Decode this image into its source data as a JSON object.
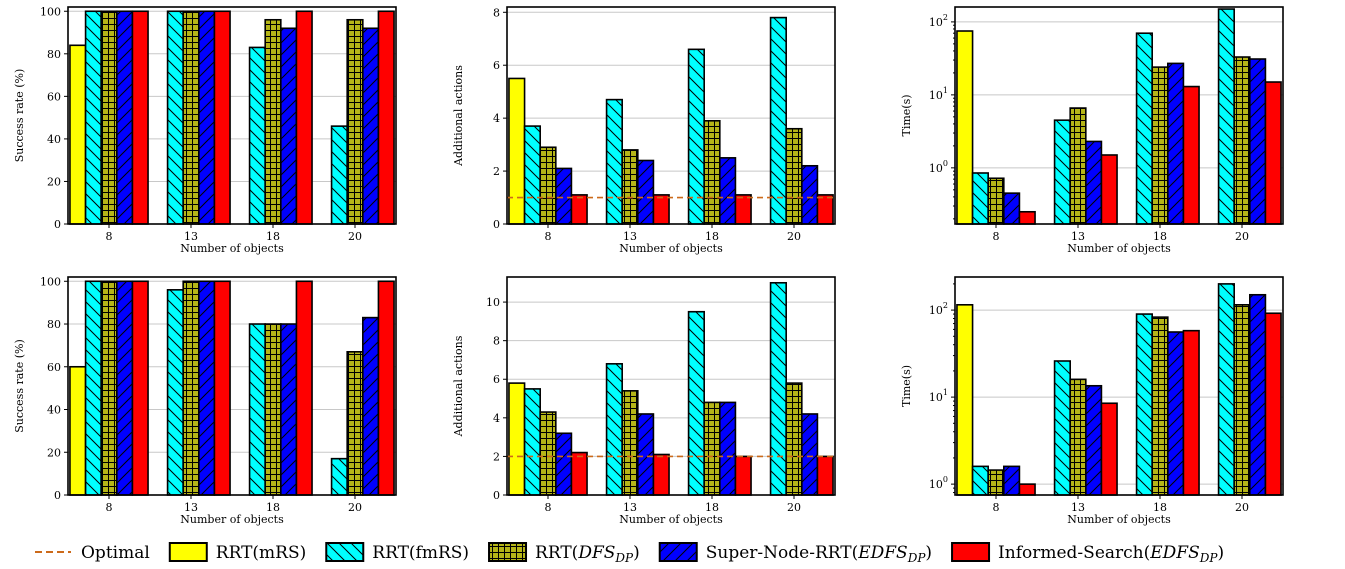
{
  "legend": {
    "items": [
      {
        "key": "optimal",
        "label": "Optimal",
        "kind": "line",
        "color": "#cc6a1a"
      },
      {
        "key": "mrs",
        "label": "RRT(mRS)",
        "kind": "bar",
        "color": "#ffff00",
        "hatch": "none"
      },
      {
        "key": "fmrs",
        "label": "RRT(fmRS)",
        "kind": "bar",
        "color": "#00ffff",
        "hatch": "backslash"
      },
      {
        "key": "dfs",
        "label_main": "RRT(",
        "label_sym": "DFS",
        "label_sub": "DP",
        "label_end": ")",
        "kind": "bar",
        "color": "#b5b518",
        "hatch": "grid"
      },
      {
        "key": "sn",
        "label_main": "Super-Node-RRT(",
        "label_sym": "EDFS",
        "label_sub": "DP",
        "label_end": ")",
        "kind": "bar",
        "color": "#0000ff",
        "hatch": "slash"
      },
      {
        "key": "inf",
        "label_main": "Informed-Search(",
        "label_sym": "EDFS",
        "label_sub": "DP",
        "label_end": ")",
        "kind": "bar",
        "color": "#ff0000",
        "hatch": "none"
      }
    ]
  },
  "chart_data": [
    {
      "type": "bar",
      "scale": "linear",
      "categories": [
        "8",
        "13",
        "18",
        "20"
      ],
      "xlabel": "Number of objects",
      "ylabel": "Success rate (%)",
      "ylim": [
        0,
        102
      ],
      "yticks": [
        0,
        20,
        40,
        60,
        80,
        100
      ],
      "grid": true,
      "series": [
        {
          "name": "RRT(mRS)",
          "values": [
            84,
            null,
            null,
            null
          ]
        },
        {
          "name": "RRT(fmRS)",
          "values": [
            100,
            100,
            83,
            46
          ]
        },
        {
          "name": "RRT(DFS_DP)",
          "values": [
            100,
            100,
            96,
            96
          ]
        },
        {
          "name": "Super-Node-RRT(EDFS_DP)",
          "values": [
            100,
            100,
            92,
            92
          ]
        },
        {
          "name": "Informed-Search(EDFS_DP)",
          "values": [
            100,
            100,
            100,
            100
          ]
        }
      ]
    },
    {
      "type": "bar",
      "scale": "linear",
      "categories": [
        "8",
        "13",
        "18",
        "20"
      ],
      "xlabel": "Number of objects",
      "ylabel": "Additional actions",
      "ylim": [
        0,
        8.2
      ],
      "yticks": [
        0,
        2,
        4,
        6,
        8
      ],
      "grid": true,
      "optimal": 1,
      "series": [
        {
          "name": "RRT(mRS)",
          "values": [
            5.5,
            null,
            null,
            null
          ]
        },
        {
          "name": "RRT(fmRS)",
          "values": [
            3.7,
            4.7,
            6.6,
            7.8
          ]
        },
        {
          "name": "RRT(DFS_DP)",
          "values": [
            2.9,
            2.8,
            3.9,
            3.6
          ]
        },
        {
          "name": "Super-Node-RRT(EDFS_DP)",
          "values": [
            2.1,
            2.4,
            2.5,
            2.2
          ]
        },
        {
          "name": "Informed-Search(EDFS_DP)",
          "values": [
            1.1,
            1.1,
            1.1,
            1.1
          ]
        }
      ]
    },
    {
      "type": "bar",
      "scale": "log",
      "categories": [
        "8",
        "13",
        "18",
        "20"
      ],
      "xlabel": "Number of objects",
      "ylabel": "Time(s)",
      "ylim": [
        0.17,
        160
      ],
      "yticks": [
        1,
        10,
        100
      ],
      "grid": true,
      "series": [
        {
          "name": "RRT(mRS)",
          "values": [
            75,
            null,
            null,
            null
          ]
        },
        {
          "name": "RRT(fmRS)",
          "values": [
            0.85,
            4.5,
            70,
            150
          ]
        },
        {
          "name": "RRT(DFS_DP)",
          "values": [
            0.72,
            6.6,
            24,
            33
          ]
        },
        {
          "name": "Super-Node-RRT(EDFS_DP)",
          "values": [
            0.45,
            2.3,
            27,
            31
          ]
        },
        {
          "name": "Informed-Search(EDFS_DP)",
          "values": [
            0.25,
            1.5,
            13,
            15
          ]
        }
      ]
    },
    {
      "type": "bar",
      "scale": "linear",
      "categories": [
        "8",
        "13",
        "18",
        "20"
      ],
      "xlabel": "Number of objects",
      "ylabel": "Success rate (%)",
      "ylim": [
        0,
        102
      ],
      "yticks": [
        0,
        20,
        40,
        60,
        80,
        100
      ],
      "grid": true,
      "series": [
        {
          "name": "RRT(mRS)",
          "values": [
            60,
            null,
            null,
            null
          ]
        },
        {
          "name": "RRT(fmRS)",
          "values": [
            100,
            96,
            80,
            17
          ]
        },
        {
          "name": "RRT(DFS_DP)",
          "values": [
            100,
            100,
            80,
            67
          ]
        },
        {
          "name": "Super-Node-RRT(EDFS_DP)",
          "values": [
            100,
            100,
            80,
            83
          ]
        },
        {
          "name": "Informed-Search(EDFS_DP)",
          "values": [
            100,
            100,
            100,
            100
          ]
        }
      ]
    },
    {
      "type": "bar",
      "scale": "linear",
      "categories": [
        "8",
        "13",
        "18",
        "20"
      ],
      "xlabel": "Number of objects",
      "ylabel": "Additional actions",
      "ylim": [
        0,
        11.3
      ],
      "yticks": [
        0,
        2,
        4,
        6,
        8,
        10
      ],
      "grid": true,
      "optimal": 2,
      "series": [
        {
          "name": "RRT(mRS)",
          "values": [
            5.8,
            null,
            null,
            null
          ]
        },
        {
          "name": "RRT(fmRS)",
          "values": [
            5.5,
            6.8,
            9.5,
            11.0
          ]
        },
        {
          "name": "RRT(DFS_DP)",
          "values": [
            4.3,
            5.4,
            4.8,
            5.8
          ]
        },
        {
          "name": "Super-Node-RRT(EDFS_DP)",
          "values": [
            3.2,
            4.2,
            4.8,
            4.2
          ]
        },
        {
          "name": "Informed-Search(EDFS_DP)",
          "values": [
            2.2,
            2.1,
            2.0,
            2.0
          ]
        }
      ]
    },
    {
      "type": "bar",
      "scale": "log",
      "categories": [
        "8",
        "13",
        "18",
        "20"
      ],
      "xlabel": "Number of objects",
      "ylabel": "Time(s)",
      "ylim": [
        0.75,
        240
      ],
      "yticks": [
        1,
        10,
        100
      ],
      "grid": true,
      "series": [
        {
          "name": "RRT(mRS)",
          "values": [
            115,
            null,
            null,
            null
          ]
        },
        {
          "name": "RRT(fmRS)",
          "values": [
            1.6,
            26,
            90,
            200
          ]
        },
        {
          "name": "RRT(DFS_DP)",
          "values": [
            1.45,
            16,
            83,
            115
          ]
        },
        {
          "name": "Super-Node-RRT(EDFS_DP)",
          "values": [
            1.6,
            13.5,
            56,
            150
          ]
        },
        {
          "name": "Informed-Search(EDFS_DP)",
          "values": [
            1.0,
            8.5,
            58,
            92
          ]
        }
      ]
    }
  ]
}
